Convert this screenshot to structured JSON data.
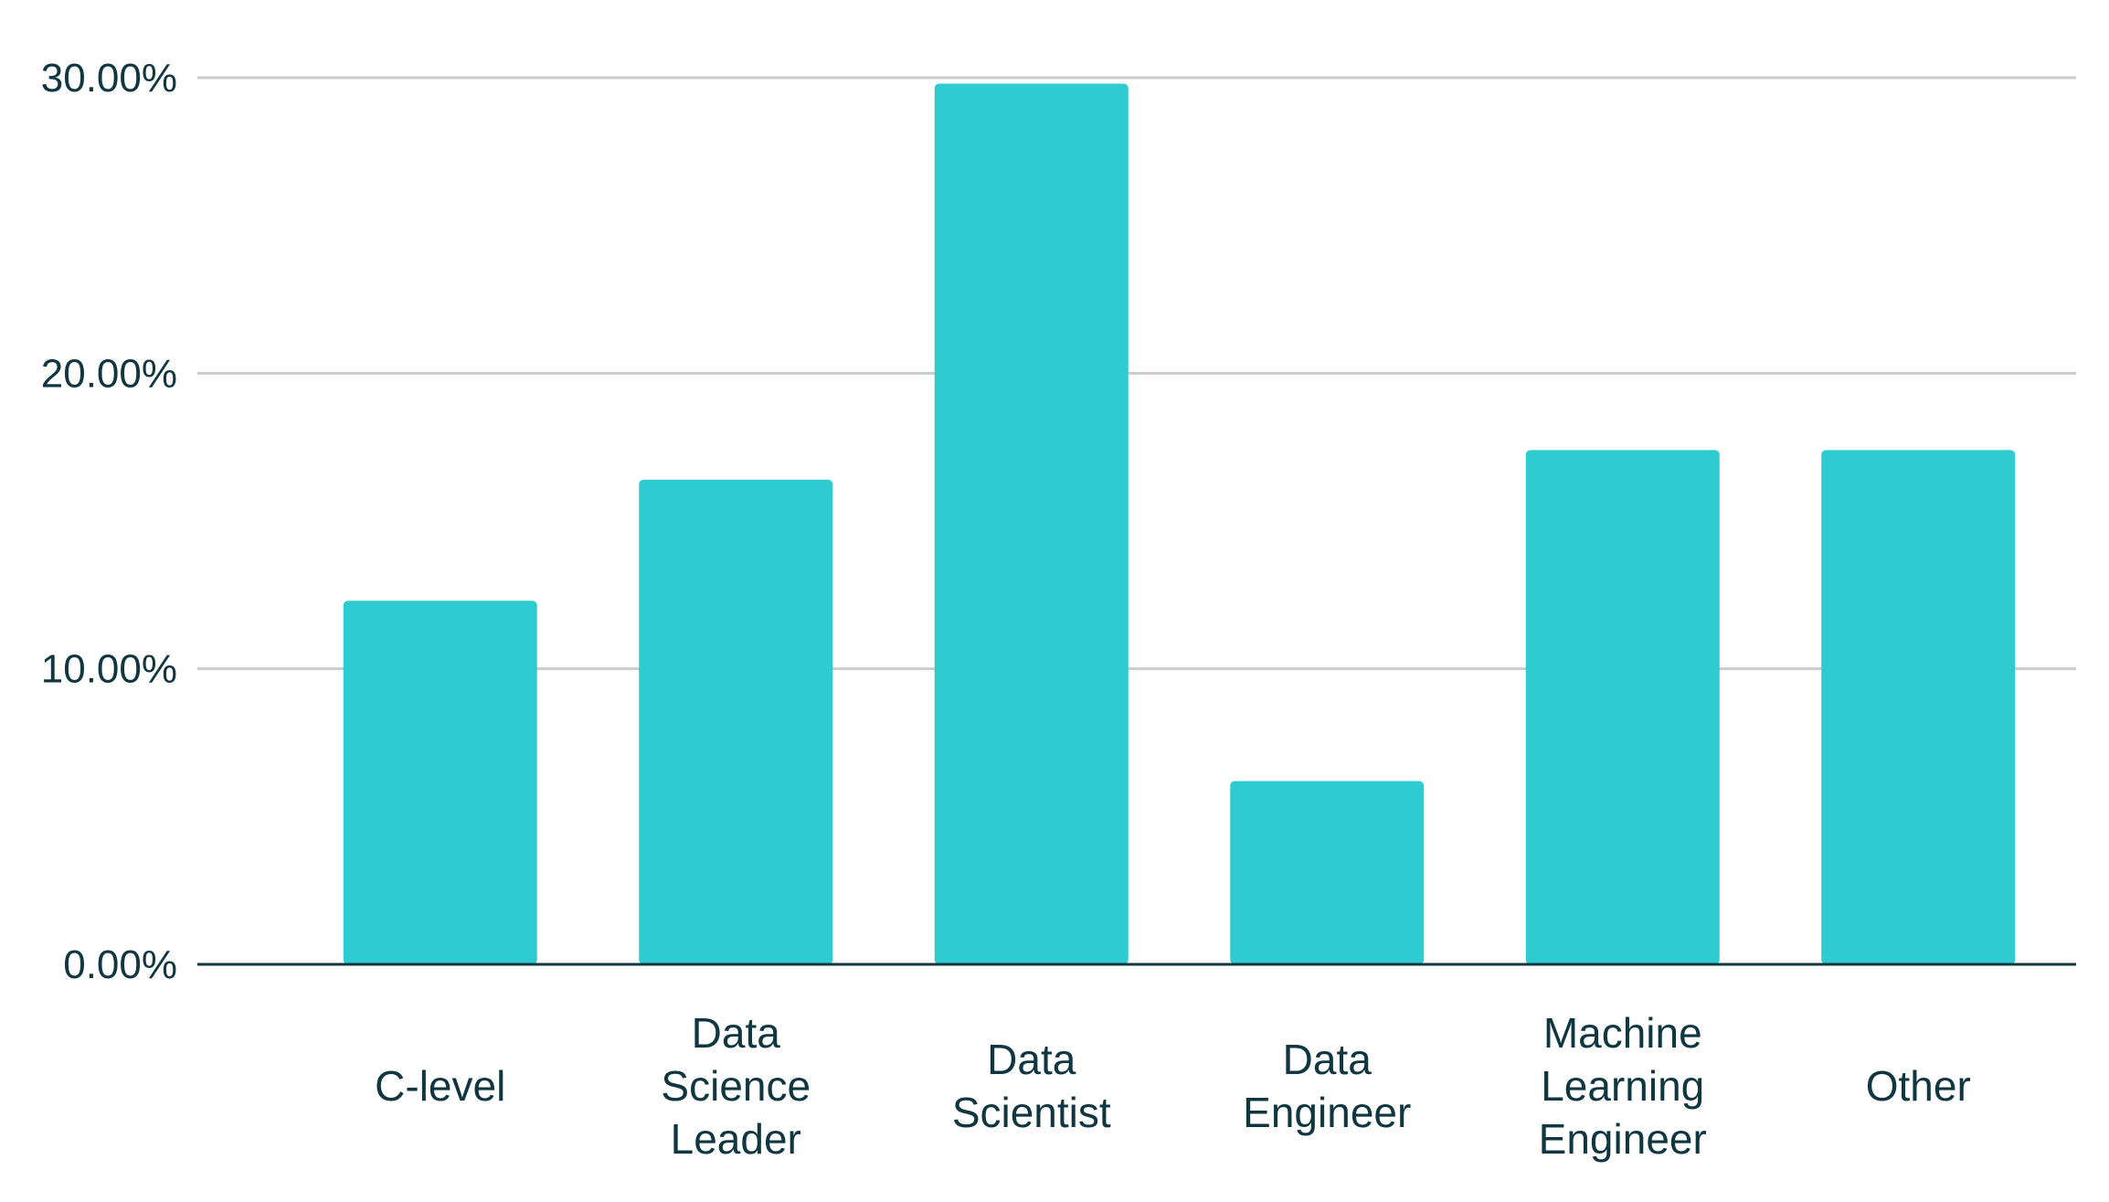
{
  "chart_data": {
    "type": "bar",
    "categories": [
      "C-level",
      "Data Science Leader",
      "Data Scientist",
      "Data Engineer",
      "Machine Learning Engineer",
      "Other"
    ],
    "category_label_lines": [
      [
        "C-level"
      ],
      [
        "Data",
        "Science",
        "Leader"
      ],
      [
        "Data",
        "Scientist"
      ],
      [
        "Data",
        "Engineer"
      ],
      [
        "Machine",
        "Learning",
        "Engineer"
      ],
      [
        "Other"
      ]
    ],
    "values": [
      12.3,
      16.4,
      29.8,
      6.2,
      17.4,
      17.4
    ],
    "ylim": [
      0,
      30
    ],
    "yticks": [
      0,
      10,
      20,
      30
    ],
    "ytick_labels": [
      "0.00%",
      "10.00%",
      "20.00%",
      "30.00%"
    ],
    "title": "",
    "xlabel": "",
    "ylabel": "",
    "grid": true,
    "legend": "none",
    "colors": {
      "bar": "#2ecbd1",
      "grid": "#cccccc",
      "axis": "#0f3641",
      "text": "#0f3641"
    }
  }
}
